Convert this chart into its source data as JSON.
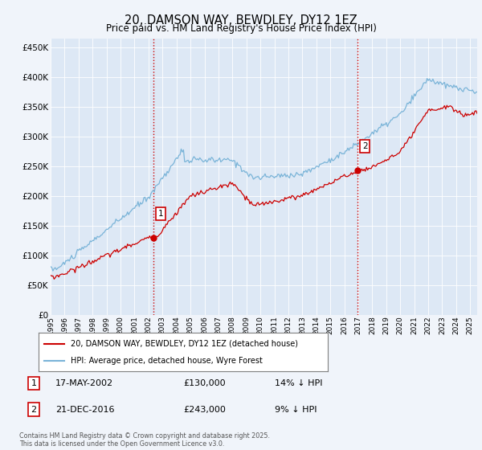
{
  "title": "20, DAMSON WAY, BEWDLEY, DY12 1EZ",
  "subtitle": "Price paid vs. HM Land Registry's House Price Index (HPI)",
  "ytick_vals": [
    0,
    50000,
    100000,
    150000,
    200000,
    250000,
    300000,
    350000,
    400000,
    450000
  ],
  "ylim": [
    0,
    465000
  ],
  "xlim_start": 1995.0,
  "xlim_end": 2025.5,
  "hpi_color": "#7ab4d8",
  "price_color": "#cc0000",
  "vline_color": "#cc0000",
  "plot_bg_color": "#dde8f5",
  "fig_bg_color": "#f0f4fa",
  "grid_color": "#ffffff",
  "marker1_x": 2002.37,
  "marker1_y": 130000,
  "marker2_x": 2016.97,
  "marker2_y": 243000,
  "legend_line1": "20, DAMSON WAY, BEWDLEY, DY12 1EZ (detached house)",
  "legend_line2": "HPI: Average price, detached house, Wyre Forest",
  "ann1_date": "17-MAY-2002",
  "ann1_price": "£130,000",
  "ann1_hpi": "14% ↓ HPI",
  "ann2_date": "21-DEC-2016",
  "ann2_price": "£243,000",
  "ann2_hpi": "9% ↓ HPI",
  "footnote": "Contains HM Land Registry data © Crown copyright and database right 2025.\nThis data is licensed under the Open Government Licence v3.0."
}
